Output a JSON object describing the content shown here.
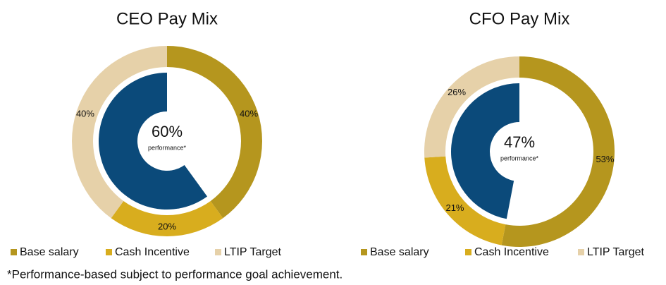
{
  "chart_data": [
    {
      "type": "donut",
      "title": "CEO Pay Mix",
      "categories": [
        "Base salary",
        "Cash Incentive",
        "LTIP Target"
      ],
      "values": [
        40,
        20,
        40
      ],
      "value_labels": [
        "40%",
        "20%",
        "40%"
      ],
      "colors": [
        "#b5961e",
        "#d8ad1e",
        "#e6d1a9"
      ],
      "inner": {
        "name": "performance*",
        "value": 60,
        "label": "60%",
        "color": "#0b4a7a"
      }
    },
    {
      "type": "donut",
      "title": "CFO Pay Mix",
      "categories": [
        "Base salary",
        "Cash Incentive",
        "LTIP Target"
      ],
      "values": [
        53,
        21,
        26
      ],
      "value_labels": [
        "53%",
        "21%",
        "26%"
      ],
      "colors": [
        "#b5961e",
        "#d8ad1e",
        "#e6d1a9"
      ],
      "inner": {
        "name": "performance*",
        "value": 47,
        "label": "47%",
        "color": "#0b4a7a"
      }
    }
  ],
  "footnote": "*Performance-based subject to performance goal achievement."
}
